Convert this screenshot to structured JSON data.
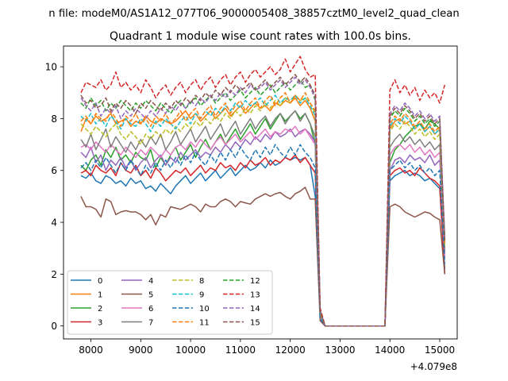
{
  "figure": {
    "suptitle": "n file: modeM0/AS1A12_077T06_9000005408_38857cztM0_level2_quad_clean",
    "offset_label": "+4.079e8"
  },
  "chart_data": {
    "type": "line",
    "title": "Quadrant 1 module wise count rates with 100.0s bins.",
    "xlabel": "",
    "ylabel": "",
    "x_offset": 407900000,
    "xlim": [
      7450,
      15350
    ],
    "ylim": [
      -0.5,
      10.8
    ],
    "x_ticks": [
      8000,
      9000,
      10000,
      11000,
      12000,
      13000,
      14000,
      15000
    ],
    "y_ticks": [
      0,
      2,
      4,
      6,
      8,
      10
    ],
    "grid": false,
    "legend_position": "lower-left",
    "legend_columns": 4,
    "x_start": 7800,
    "x_step": 100,
    "gap_start": 12800,
    "gap_end": 13900,
    "series": [
      {
        "name": "0",
        "color": "#1f77b4",
        "dash": "solid",
        "pre": [
          5.8,
          5.7,
          5.9,
          5.6,
          5.5,
          5.8,
          5.7,
          5.5,
          5.6,
          5.4,
          5.7,
          5.5,
          5.6,
          5.3,
          5.4,
          5.2,
          5.5,
          5.3,
          5.1,
          5.4,
          5.6,
          5.8,
          5.5,
          5.7,
          5.9,
          5.6,
          5.8,
          6.0,
          5.7,
          5.9,
          6.1,
          5.8,
          6.0,
          6.2,
          6.0,
          6.1,
          6.3,
          6.1,
          6.4,
          6.2,
          6.3,
          6.5,
          6.4,
          6.5,
          6.4,
          6.5,
          6.2,
          5.0
        ],
        "tail_start": 0.4,
        "post": [
          5.6,
          5.8,
          5.9,
          6.0,
          5.8,
          5.9,
          5.8,
          5.6,
          5.7,
          5.5,
          5.3,
          2.2
        ]
      },
      {
        "name": "1",
        "color": "#ff7f0e",
        "dash": "solid",
        "pre": [
          7.5,
          8.0,
          7.8,
          8.1,
          7.9,
          8.0,
          8.2,
          7.8,
          7.9,
          8.0,
          7.7,
          7.9,
          7.8,
          8.1,
          7.9,
          7.8,
          8.0,
          7.9,
          7.8,
          7.9,
          8.1,
          8.3,
          8.0,
          8.2,
          7.9,
          8.1,
          8.3,
          8.0,
          8.2,
          8.4,
          8.1,
          8.3,
          8.5,
          8.2,
          8.4,
          8.6,
          8.4,
          8.5,
          8.3,
          8.6,
          8.5,
          8.7,
          8.6,
          8.8,
          8.5,
          8.7,
          8.4,
          7.9
        ],
        "tail_start": 0.5,
        "post": [
          7.6,
          7.9,
          8.0,
          7.8,
          7.9,
          7.6,
          7.8,
          7.5,
          7.7,
          7.4,
          7.6,
          3.0
        ]
      },
      {
        "name": "2",
        "color": "#2ca02c",
        "dash": "solid",
        "pre": [
          6.2,
          6.0,
          6.4,
          6.6,
          6.2,
          6.8,
          6.5,
          6.9,
          6.4,
          6.6,
          6.3,
          6.7,
          6.5,
          6.4,
          6.8,
          6.1,
          6.5,
          6.2,
          6.6,
          6.9,
          6.4,
          6.7,
          7.0,
          6.5,
          6.9,
          7.2,
          6.8,
          7.1,
          7.4,
          7.0,
          7.3,
          7.6,
          7.2,
          7.5,
          7.8,
          7.4,
          7.7,
          8.0,
          7.6,
          7.9,
          8.2,
          7.9,
          8.1,
          8.3,
          8.0,
          8.2,
          7.8,
          7.0
        ],
        "tail_start": 0.4,
        "post": [
          6.3,
          6.8,
          7.0,
          7.3,
          7.5,
          7.7,
          7.8,
          7.6,
          7.9,
          7.8,
          7.6,
          3.4
        ]
      },
      {
        "name": "3",
        "color": "#d62728",
        "dash": "solid",
        "pre": [
          5.9,
          6.0,
          5.8,
          6.2,
          6.0,
          5.9,
          6.1,
          5.8,
          6.3,
          6.0,
          5.9,
          6.2,
          5.8,
          6.0,
          5.7,
          6.1,
          5.9,
          5.6,
          5.8,
          6.0,
          5.9,
          6.1,
          5.8,
          6.0,
          6.2,
          5.9,
          6.1,
          6.0,
          6.3,
          6.1,
          6.2,
          6.0,
          6.3,
          6.1,
          6.4,
          6.2,
          6.3,
          6.5,
          6.2,
          6.4,
          6.3,
          6.5,
          6.4,
          6.6,
          6.3,
          6.5,
          6.2,
          5.9
        ],
        "tail_start": 0.4,
        "post": [
          5.8,
          6.0,
          6.1,
          5.9,
          6.0,
          5.8,
          6.1,
          5.9,
          5.7,
          5.6,
          5.4,
          2.0
        ]
      },
      {
        "name": "4",
        "color": "#9467bd",
        "dash": "solid",
        "pre": [
          6.7,
          6.5,
          6.9,
          6.3,
          6.6,
          6.0,
          6.4,
          6.2,
          6.5,
          6.1,
          6.4,
          6.0,
          6.3,
          6.5,
          6.1,
          6.4,
          6.6,
          6.2,
          6.5,
          6.3,
          6.7,
          6.4,
          6.6,
          6.8,
          6.5,
          6.7,
          6.6,
          6.9,
          6.7,
          7.0,
          6.8,
          7.1,
          6.9,
          7.2,
          7.0,
          7.3,
          7.1,
          7.4,
          7.2,
          7.5,
          7.3,
          7.4,
          7.6,
          7.3,
          7.5,
          7.6,
          7.4,
          7.1
        ],
        "tail_start": 0.4,
        "post": [
          6.0,
          6.4,
          6.5,
          6.3,
          6.6,
          6.4,
          6.5,
          6.3,
          6.6,
          6.2,
          6.4,
          2.8
        ]
      },
      {
        "name": "5",
        "color": "#8c564b",
        "dash": "solid",
        "pre": [
          5.0,
          4.6,
          4.6,
          4.5,
          4.2,
          4.9,
          4.8,
          4.3,
          4.4,
          4.45,
          4.4,
          4.4,
          4.3,
          4.1,
          4.3,
          3.9,
          4.3,
          4.2,
          4.6,
          4.55,
          4.5,
          4.6,
          4.7,
          4.6,
          4.4,
          4.7,
          4.6,
          4.6,
          4.8,
          4.9,
          4.8,
          4.6,
          4.8,
          4.75,
          4.7,
          4.9,
          5.0,
          5.1,
          5.0,
          5.1,
          5.15,
          5.0,
          4.9,
          5.1,
          5.2,
          5.35,
          4.9,
          4.9
        ],
        "tail_start": 0.2,
        "post": [
          4.6,
          4.7,
          4.6,
          4.4,
          4.3,
          4.2,
          4.3,
          4.4,
          4.35,
          4.2,
          4.1,
          2.0
        ]
      },
      {
        "name": "6",
        "color": "#e377c2",
        "dash": "solid",
        "pre": [
          6.9,
          7.0,
          6.8,
          7.1,
          6.9,
          6.7,
          7.0,
          6.8,
          6.6,
          6.9,
          6.7,
          6.5,
          6.8,
          6.6,
          6.9,
          6.7,
          6.5,
          6.8,
          6.6,
          6.9,
          7.0,
          6.8,
          7.1,
          6.9,
          7.2,
          7.0,
          6.8,
          7.1,
          7.3,
          7.0,
          7.2,
          7.4,
          7.1,
          7.3,
          7.5,
          7.2,
          7.4,
          7.6,
          7.3,
          7.5,
          7.4,
          7.6,
          7.5,
          7.7,
          7.4,
          7.6,
          7.3,
          7.0
        ],
        "tail_start": 0.4,
        "post": [
          6.6,
          6.9,
          7.0,
          6.8,
          7.0,
          6.7,
          6.9,
          6.6,
          6.8,
          6.5,
          6.7,
          2.6
        ]
      },
      {
        "name": "7",
        "color": "#7f7f7f",
        "dash": "solid",
        "pre": [
          7.2,
          6.9,
          7.4,
          6.8,
          7.2,
          7.6,
          6.9,
          7.3,
          7.0,
          6.7,
          7.1,
          6.8,
          7.2,
          6.9,
          7.3,
          7.0,
          7.4,
          6.8,
          7.1,
          7.5,
          7.0,
          7.3,
          7.6,
          7.1,
          7.4,
          7.7,
          7.2,
          7.5,
          7.8,
          7.3,
          7.6,
          7.9,
          7.4,
          7.7,
          8.0,
          7.6,
          7.9,
          8.1,
          7.7,
          8.0,
          8.2,
          7.8,
          8.1,
          8.3,
          7.9,
          8.2,
          7.8,
          7.3
        ],
        "tail_start": 0.4,
        "post": [
          6.9,
          7.2,
          7.4,
          7.1,
          7.3,
          7.0,
          7.2,
          6.9,
          7.1,
          6.8,
          7.0,
          2.9
        ]
      },
      {
        "name": "8",
        "color": "#bcbd22",
        "dash": "dashed",
        "pre": [
          7.8,
          7.6,
          7.4,
          7.7,
          7.5,
          7.3,
          7.6,
          7.8,
          7.4,
          7.2,
          7.5,
          7.3,
          7.0,
          7.4,
          7.2,
          7.5,
          7.3,
          7.6,
          7.4,
          7.7,
          7.5,
          7.8,
          7.6,
          7.9,
          7.7,
          8.0,
          7.8,
          8.1,
          7.9,
          8.2,
          8.0,
          8.3,
          8.1,
          8.4,
          8.2,
          8.5,
          8.3,
          8.6,
          8.4,
          8.7,
          8.5,
          8.8,
          8.6,
          8.9,
          8.7,
          8.8,
          8.6,
          8.2
        ],
        "tail_start": 0.5,
        "post": [
          7.5,
          7.8,
          7.6,
          7.9,
          7.7,
          7.4,
          7.6,
          7.3,
          7.5,
          7.2,
          7.4,
          3.1
        ]
      },
      {
        "name": "9",
        "color": "#17becf",
        "dash": "dashed",
        "pre": [
          8.1,
          7.9,
          8.2,
          7.8,
          8.0,
          7.7,
          8.1,
          7.9,
          7.6,
          8.0,
          7.8,
          7.7,
          8.0,
          7.8,
          7.5,
          7.9,
          7.7,
          8.0,
          7.8,
          7.6,
          7.9,
          8.1,
          7.8,
          8.2,
          8.0,
          8.3,
          8.1,
          8.4,
          8.2,
          8.5,
          8.3,
          8.6,
          8.4,
          8.7,
          8.5,
          8.6,
          8.8,
          8.5,
          8.7,
          8.9,
          8.6,
          8.8,
          8.7,
          8.9,
          8.6,
          8.8,
          8.5,
          8.1
        ],
        "tail_start": 0.5,
        "post": [
          7.7,
          8.0,
          7.8,
          8.1,
          7.9,
          7.6,
          7.8,
          7.5,
          7.7,
          7.4,
          7.6,
          3.2
        ]
      },
      {
        "name": "10",
        "color": "#1f77b4",
        "dash": "dashed",
        "pre": [
          6.1,
          6.3,
          6.0,
          6.4,
          6.1,
          6.5,
          6.2,
          5.9,
          6.3,
          6.0,
          6.4,
          6.1,
          5.8,
          6.2,
          5.9,
          6.3,
          6.0,
          6.4,
          6.1,
          6.5,
          6.2,
          6.6,
          6.3,
          6.7,
          6.4,
          6.2,
          6.6,
          6.3,
          6.7,
          6.4,
          6.8,
          6.5,
          6.9,
          6.6,
          6.4,
          6.8,
          6.5,
          6.9,
          6.6,
          7.0,
          6.7,
          6.5,
          6.9,
          6.6,
          7.0,
          6.7,
          6.5,
          6.1
        ],
        "tail_start": 0.3,
        "post": [
          6.0,
          6.2,
          6.4,
          6.1,
          6.3,
          6.0,
          6.2,
          5.9,
          6.1,
          5.8,
          6.0,
          2.4
        ]
      },
      {
        "name": "11",
        "color": "#ff7f0e",
        "dash": "dashed",
        "pre": [
          7.9,
          8.1,
          7.8,
          8.2,
          8.0,
          7.9,
          8.3,
          8.0,
          7.7,
          8.1,
          7.9,
          8.2,
          7.8,
          8.0,
          7.7,
          8.1,
          7.9,
          8.2,
          7.8,
          8.0,
          8.3,
          7.9,
          8.2,
          8.4,
          8.0,
          8.3,
          8.5,
          8.1,
          8.4,
          8.6,
          8.2,
          8.5,
          8.7,
          8.3,
          8.6,
          8.8,
          8.4,
          8.7,
          8.9,
          8.5,
          8.8,
          9.0,
          8.6,
          8.9,
          8.7,
          9.0,
          8.6,
          8.3
        ],
        "tail_start": 0.5,
        "post": [
          7.8,
          8.1,
          7.9,
          8.2,
          8.0,
          7.7,
          7.9,
          7.6,
          7.8,
          7.5,
          7.7,
          3.2
        ]
      },
      {
        "name": "12",
        "color": "#2ca02c",
        "dash": "dashed",
        "pre": [
          8.6,
          8.4,
          8.8,
          8.5,
          8.7,
          8.3,
          8.6,
          8.4,
          8.7,
          8.5,
          8.3,
          8.6,
          8.4,
          8.7,
          8.5,
          8.3,
          8.6,
          8.4,
          8.2,
          8.5,
          8.7,
          8.4,
          8.6,
          8.8,
          8.5,
          8.7,
          8.9,
          8.6,
          8.8,
          9.0,
          8.7,
          8.9,
          9.1,
          8.8,
          9.0,
          9.2,
          8.9,
          9.1,
          9.3,
          9.0,
          9.2,
          9.4,
          9.1,
          9.3,
          9.5,
          9.2,
          9.3,
          8.7
        ],
        "tail_start": 0.6,
        "post": [
          8.0,
          8.3,
          8.1,
          8.4,
          8.2,
          7.9,
          8.1,
          7.8,
          8.0,
          7.7,
          7.9,
          3.3
        ]
      },
      {
        "name": "13",
        "color": "#d62728",
        "dash": "dashed",
        "pre": [
          9.0,
          9.4,
          9.3,
          9.2,
          9.5,
          9.1,
          9.3,
          9.8,
          9.2,
          9.4,
          9.1,
          9.3,
          9.0,
          9.5,
          9.2,
          8.8,
          9.1,
          9.3,
          8.9,
          9.2,
          9.4,
          9.0,
          9.3,
          9.5,
          9.1,
          9.4,
          9.6,
          9.2,
          9.5,
          9.7,
          9.3,
          9.6,
          9.8,
          9.4,
          9.7,
          9.9,
          9.6,
          9.8,
          10.0,
          9.7,
          9.9,
          10.3,
          9.8,
          10.1,
          10.4,
          9.9,
          9.6,
          9.7
        ],
        "tail_start": 0.7,
        "post": [
          9.1,
          9.5,
          9.0,
          9.3,
          8.9,
          9.2,
          8.7,
          9.1,
          8.8,
          9.0,
          8.6,
          9.3
        ]
      },
      {
        "name": "14",
        "color": "#9467bd",
        "dash": "dashed",
        "pre": [
          8.8,
          8.5,
          8.3,
          8.6,
          8.1,
          8.4,
          8.2,
          8.5,
          8.0,
          8.3,
          8.1,
          8.4,
          8.2,
          8.0,
          8.3,
          8.1,
          8.4,
          8.2,
          8.5,
          8.3,
          8.6,
          8.4,
          8.7,
          8.5,
          8.8,
          8.6,
          8.9,
          8.7,
          9.0,
          8.8,
          9.1,
          8.9,
          9.2,
          9.0,
          9.3,
          9.1,
          9.2,
          9.4,
          9.1,
          9.3,
          9.5,
          9.2,
          9.4,
          9.6,
          9.3,
          9.5,
          9.2,
          8.8
        ],
        "tail_start": 0.6,
        "post": [
          8.2,
          8.5,
          8.3,
          8.6,
          8.4,
          8.1,
          8.3,
          8.0,
          8.2,
          7.9,
          8.1,
          3.4
        ]
      },
      {
        "name": "15",
        "color": "#8c564b",
        "dash": "dashed",
        "pre": [
          8.9,
          8.6,
          8.7,
          8.4,
          8.5,
          8.8,
          8.3,
          8.6,
          8.4,
          8.7,
          8.5,
          8.2,
          8.6,
          8.4,
          8.7,
          8.5,
          8.3,
          8.6,
          8.4,
          8.7,
          8.5,
          8.8,
          8.6,
          8.9,
          8.7,
          9.0,
          8.8,
          9.1,
          8.9,
          9.2,
          9.0,
          9.3,
          9.1,
          9.2,
          9.4,
          9.1,
          9.3,
          9.5,
          9.2,
          9.4,
          9.6,
          9.3,
          9.5,
          9.7,
          9.4,
          9.6,
          9.3,
          8.9
        ],
        "tail_start": 0.6,
        "post": [
          8.1,
          8.4,
          8.2,
          8.5,
          8.3,
          8.0,
          8.2,
          7.9,
          8.1,
          7.8,
          8.0,
          3.3
        ]
      }
    ]
  }
}
